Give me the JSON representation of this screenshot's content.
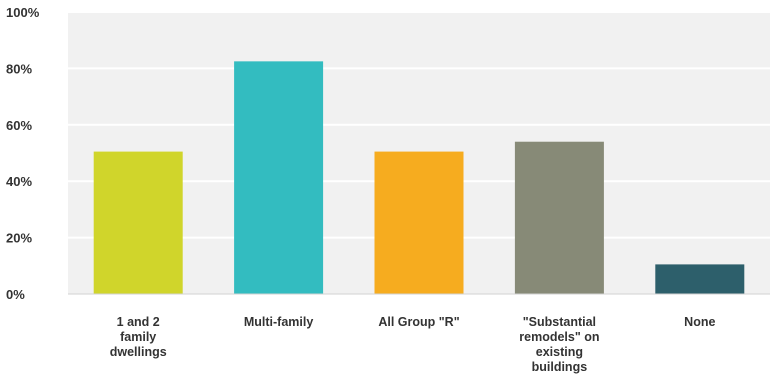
{
  "chart_data": {
    "type": "bar",
    "categories": [
      [
        "1 and 2",
        "family",
        "dwellings"
      ],
      [
        "Multi-family"
      ],
      [
        "All Group \"R\""
      ],
      [
        "\"Substantial",
        "remodels\" on",
        "existing",
        "buildings"
      ],
      [
        "None"
      ]
    ],
    "values": [
      50.5,
      82.5,
      50.5,
      54,
      10.5
    ],
    "colors": [
      "#d0d52b",
      "#33bcc0",
      "#f6ac1f",
      "#878a77",
      "#2d5f6b"
    ],
    "ylim": [
      0,
      100
    ],
    "yticks": [
      0,
      20,
      40,
      60,
      80,
      100
    ],
    "ytick_labels": [
      "0%",
      "20%",
      "40%",
      "60%",
      "80%",
      "100%"
    ],
    "plot_background": "#f1f1f1",
    "grid": true,
    "title": "",
    "xlabel": "",
    "ylabel": ""
  }
}
